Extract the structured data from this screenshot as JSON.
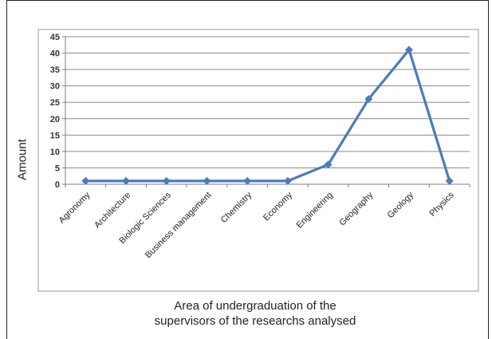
{
  "chart_data": {
    "type": "line",
    "categories": [
      "Agronomy",
      "Architecture",
      "Biologic Sciences",
      "Business management",
      "Chemistry",
      "Economy",
      "Engineering",
      "Geography",
      "Geology",
      "Physics"
    ],
    "series": [
      {
        "values": [
          1,
          1,
          1,
          1,
          1,
          1,
          6,
          26,
          41,
          1
        ],
        "color": "#4a7bbf"
      }
    ],
    "ylabel": "Amount",
    "xlabel_line1": "Area of undergraduation of the",
    "xlabel_line2": "supervisors of the researchs analysed",
    "ylim": [
      0,
      45
    ],
    "yticks": [
      0,
      5,
      10,
      15,
      20,
      25,
      30,
      35,
      40,
      45
    ],
    "grid": true,
    "marker": "diamond"
  }
}
